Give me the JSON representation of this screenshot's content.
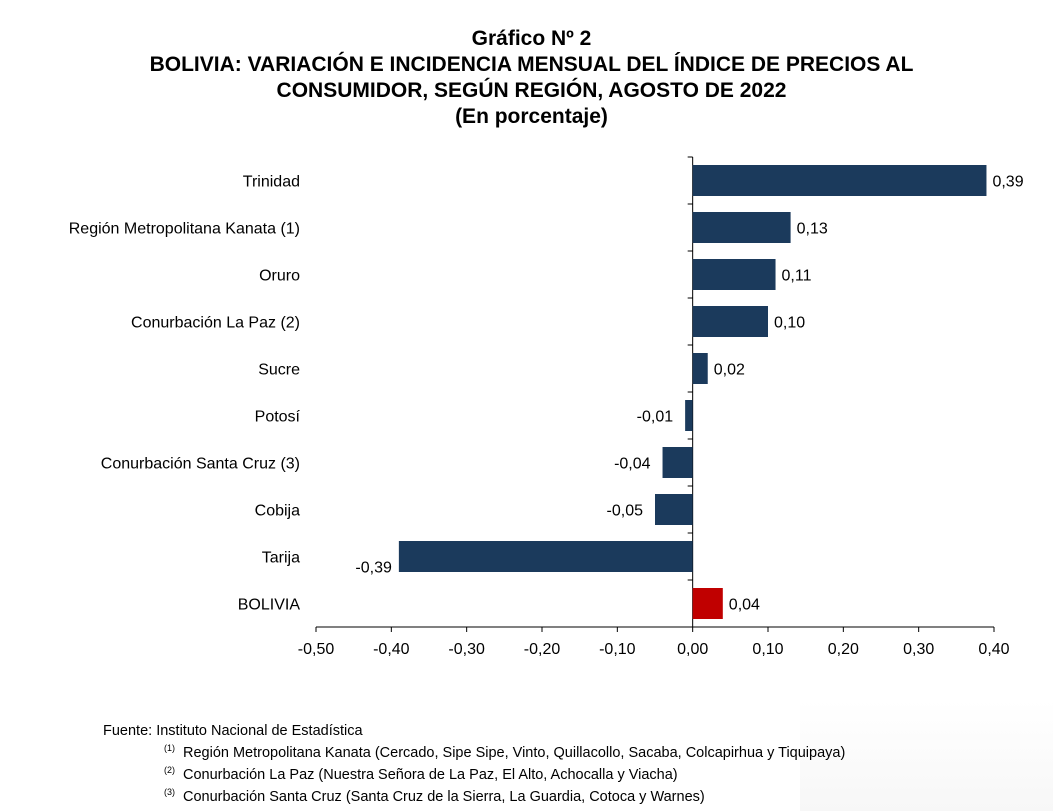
{
  "title": {
    "line1": "Gráfico Nº 2",
    "line2": "BOLIVIA: VARIACIÓN E INCIDENCIA MENSUAL DEL ÍNDICE DE PRECIOS AL",
    "line3": "CONSUMIDOR, SEGÚN REGIÓN, AGOSTO DE 2022",
    "line4": "(En porcentaje)"
  },
  "chart_data": {
    "type": "bar",
    "orientation": "horizontal",
    "categories": [
      "Trinidad",
      "Región Metropolitana Kanata (1)",
      "Oruro",
      "Conurbación La Paz (2)",
      "Sucre",
      "Potosí",
      "Conurbación Santa Cruz (3)",
      "Cobija",
      "Tarija",
      "BOLIVIA"
    ],
    "values": [
      0.39,
      0.13,
      0.11,
      0.1,
      0.02,
      -0.01,
      -0.04,
      -0.05,
      -0.39,
      0.04
    ],
    "data_labels": [
      "0,39",
      "0,13",
      "0,11",
      "0,10",
      "0,02",
      "-0,01",
      "-0,04",
      "-0,05",
      "-0,39",
      "0,04"
    ],
    "xlim": [
      -0.5,
      0.4
    ],
    "xticks": [
      -0.5,
      -0.4,
      -0.3,
      -0.2,
      -0.1,
      0.0,
      0.1,
      0.2,
      0.3,
      0.4
    ],
    "xtick_labels": [
      "-0,50",
      "-0,40",
      "-0,30",
      "-0,20",
      "-0,10",
      "0,00",
      "0,10",
      "0,20",
      "0,30",
      "0,40"
    ],
    "bar_color": "#1b3a5c",
    "highlight_category": "BOLIVIA",
    "highlight_color": "#c00000",
    "grid": false,
    "legend": "none"
  },
  "footnotes": {
    "source": "Fuente: Instituto Nacional de Estadística",
    "notes": [
      {
        "mark": "(1)",
        "text": "Región Metropolitana Kanata (Cercado, Sipe Sipe, Vinto, Quillacollo, Sacaba, Colcapirhua y Tiquipaya)"
      },
      {
        "mark": "(2)",
        "text": "Conurbación La Paz (Nuestra Señora de La Paz, El Alto, Achocalla y Viacha)"
      },
      {
        "mark": "(3)",
        "text": "Conurbación Santa Cruz (Santa Cruz de la Sierra, La Guardia, Cotoca y Warnes)"
      }
    ]
  }
}
